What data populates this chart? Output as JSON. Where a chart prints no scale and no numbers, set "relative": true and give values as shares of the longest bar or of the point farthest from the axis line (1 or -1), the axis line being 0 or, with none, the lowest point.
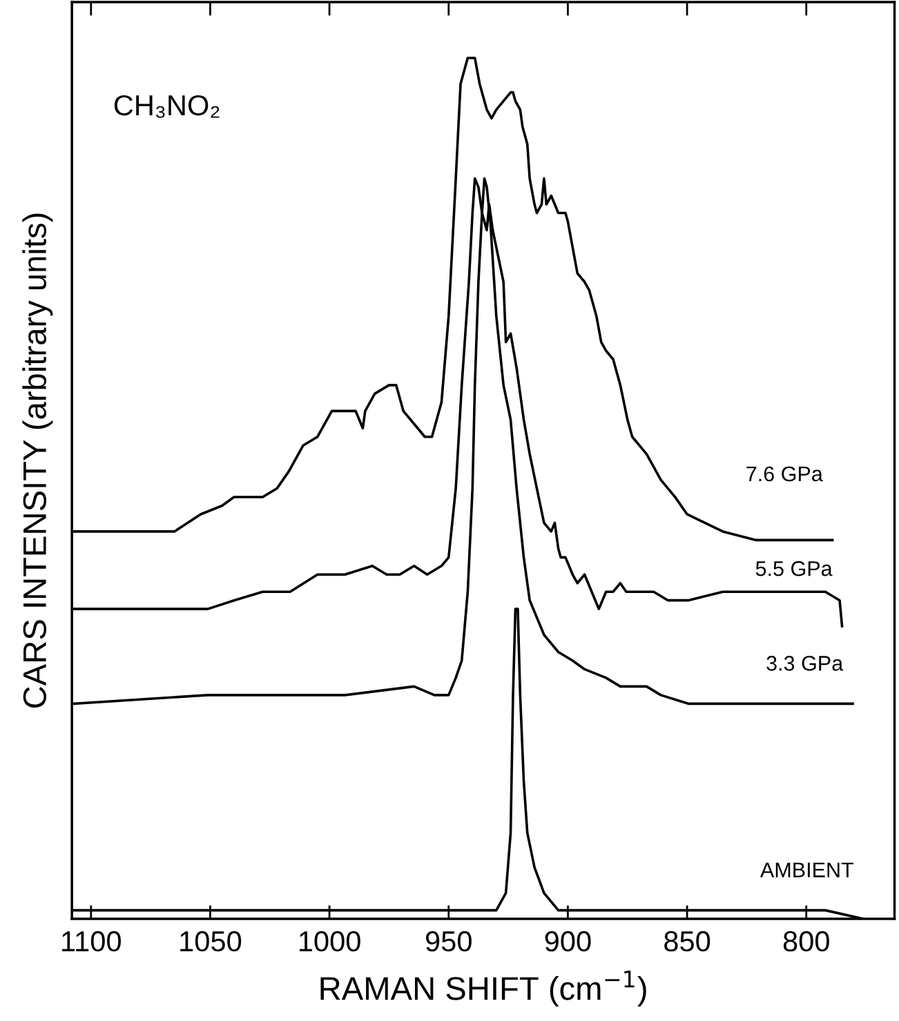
{
  "chart_data": {
    "type": "line",
    "relative": true,
    "xlabel": "RAMAN SHIFT (cm$^{−1}$)",
    "ylabel": "CARS INTENSITY (arbitrary units)",
    "annotations": [
      "CH₃NO₂"
    ],
    "xlim": [
      1108,
      763
    ],
    "xticks": [
      1100,
      1050,
      1000,
      950,
      900,
      850,
      800
    ],
    "grid": false,
    "legend": false,
    "marker": "none",
    "line_style": "solid",
    "series": [
      {
        "name": "7.6 GPa",
        "color": "#000000",
        "x": [
          1107,
          1080,
          1065,
          1054,
          1045,
          1040,
          1028,
          1022,
          1017,
          1011,
          1005,
          999,
          994,
          989,
          986,
          985,
          981,
          975,
          972,
          969,
          963,
          960,
          957,
          953,
          950,
          947,
          945,
          943,
          942,
          939,
          937,
          934,
          932,
          930,
          927,
          924,
          923,
          922,
          920,
          919,
          917,
          916,
          914,
          913,
          911,
          910,
          909,
          907,
          904,
          901,
          900,
          898,
          896,
          893,
          891,
          888,
          886,
          884,
          881,
          878,
          875,
          873,
          867,
          861,
          855,
          850,
          835,
          821,
          806,
          789
        ],
        "values": [
          0.45,
          0.45,
          0.45,
          0.47,
          0.48,
          0.49,
          0.49,
          0.5,
          0.52,
          0.55,
          0.56,
          0.59,
          0.59,
          0.59,
          0.57,
          0.59,
          0.61,
          0.62,
          0.62,
          0.59,
          0.57,
          0.56,
          0.56,
          0.6,
          0.7,
          0.86,
          0.97,
          0.99,
          1.0,
          1.0,
          0.97,
          0.94,
          0.93,
          0.94,
          0.95,
          0.96,
          0.96,
          0.95,
          0.94,
          0.92,
          0.9,
          0.86,
          0.83,
          0.82,
          0.83,
          0.86,
          0.83,
          0.84,
          0.82,
          0.82,
          0.81,
          0.78,
          0.75,
          0.74,
          0.73,
          0.7,
          0.67,
          0.66,
          0.65,
          0.62,
          0.58,
          0.56,
          0.54,
          0.51,
          0.49,
          0.47,
          0.45,
          0.44,
          0.44,
          0.44
        ]
      },
      {
        "name": "5.5 GPa",
        "color": "#000000",
        "x": [
          1107,
          1080,
          1065,
          1051,
          1040,
          1028,
          1016.5,
          1005,
          993.5,
          982,
          976,
          970.5,
          964.5,
          959,
          953,
          950,
          947,
          944.5,
          941.5,
          940,
          939,
          937.5,
          936,
          934,
          933,
          931.5,
          930,
          927,
          926,
          924,
          921.5,
          918.5,
          916,
          913,
          910,
          907,
          905.5,
          904,
          903,
          901,
          898,
          896,
          893,
          890,
          887,
          884,
          881,
          878,
          875.5,
          870,
          864,
          858,
          852.5,
          849.5,
          835,
          820.5,
          806,
          792,
          786,
          785
        ],
        "values": [
          0.36,
          0.36,
          0.36,
          0.36,
          0.37,
          0.38,
          0.38,
          0.4,
          0.4,
          0.41,
          0.4,
          0.4,
          0.41,
          0.4,
          0.41,
          0.42,
          0.5,
          0.62,
          0.74,
          0.82,
          0.86,
          0.85,
          0.82,
          0.8,
          0.83,
          0.8,
          0.78,
          0.74,
          0.67,
          0.68,
          0.64,
          0.58,
          0.54,
          0.5,
          0.46,
          0.45,
          0.46,
          0.43,
          0.42,
          0.42,
          0.4,
          0.39,
          0.4,
          0.38,
          0.36,
          0.38,
          0.38,
          0.39,
          0.38,
          0.38,
          0.38,
          0.37,
          0.37,
          0.37,
          0.38,
          0.38,
          0.38,
          0.38,
          0.37,
          0.34
        ]
      },
      {
        "name": "3.3 GPa",
        "color": "#000000",
        "x": [
          1107,
          1051,
          993.5,
          964.5,
          956,
          950,
          947,
          944.5,
          942,
          940,
          939,
          937.5,
          936,
          935,
          934,
          932.5,
          930,
          927,
          924,
          921.5,
          918.5,
          916,
          910,
          904,
          898,
          893,
          884,
          878,
          867,
          861,
          849.5,
          820.5,
          780.5
        ],
        "values": [
          0.25,
          0.26,
          0.26,
          0.27,
          0.26,
          0.26,
          0.28,
          0.3,
          0.38,
          0.5,
          0.62,
          0.74,
          0.82,
          0.86,
          0.85,
          0.81,
          0.7,
          0.62,
          0.58,
          0.5,
          0.42,
          0.37,
          0.33,
          0.31,
          0.3,
          0.29,
          0.28,
          0.27,
          0.27,
          0.26,
          0.25,
          0.25,
          0.25
        ]
      },
      {
        "name": "AMBIENT",
        "color": "#000000",
        "x": [
          1107,
          1022,
          964.5,
          936,
          930,
          926,
          924,
          923,
          922,
          921,
          920,
          918.5,
          917,
          914,
          910,
          904,
          893,
          849.5,
          792,
          776
        ],
        "values": [
          0.01,
          0.01,
          0.01,
          0.01,
          0.01,
          0.03,
          0.1,
          0.26,
          0.36,
          0.36,
          0.26,
          0.16,
          0.1,
          0.06,
          0.03,
          0.01,
          0.01,
          0.01,
          0.01,
          0.0
        ]
      }
    ]
  }
}
